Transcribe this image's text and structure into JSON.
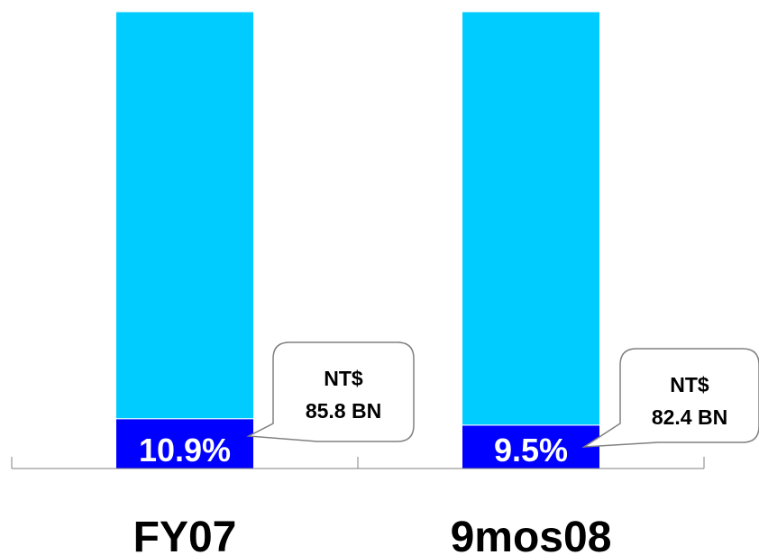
{
  "chart_data": {
    "type": "bar",
    "stacked": true,
    "categories": [
      "FY07",
      "9mos08"
    ],
    "series": [
      {
        "values": [
          10.9,
          9.5
        ],
        "labels": [
          "10.9%",
          "9.5%"
        ],
        "color": "#0000FF"
      },
      {
        "values": [
          89.1,
          90.5
        ],
        "color": "#00CCFF"
      }
    ],
    "ylim": [
      0,
      100
    ],
    "callouts": [
      {
        "category": "FY07",
        "lines": [
          "NT$",
          "85.8 BN"
        ]
      },
      {
        "category": "9mos08",
        "lines": [
          "NT$",
          "82.4 BN"
        ]
      }
    ],
    "grid": false,
    "legend": "none"
  }
}
